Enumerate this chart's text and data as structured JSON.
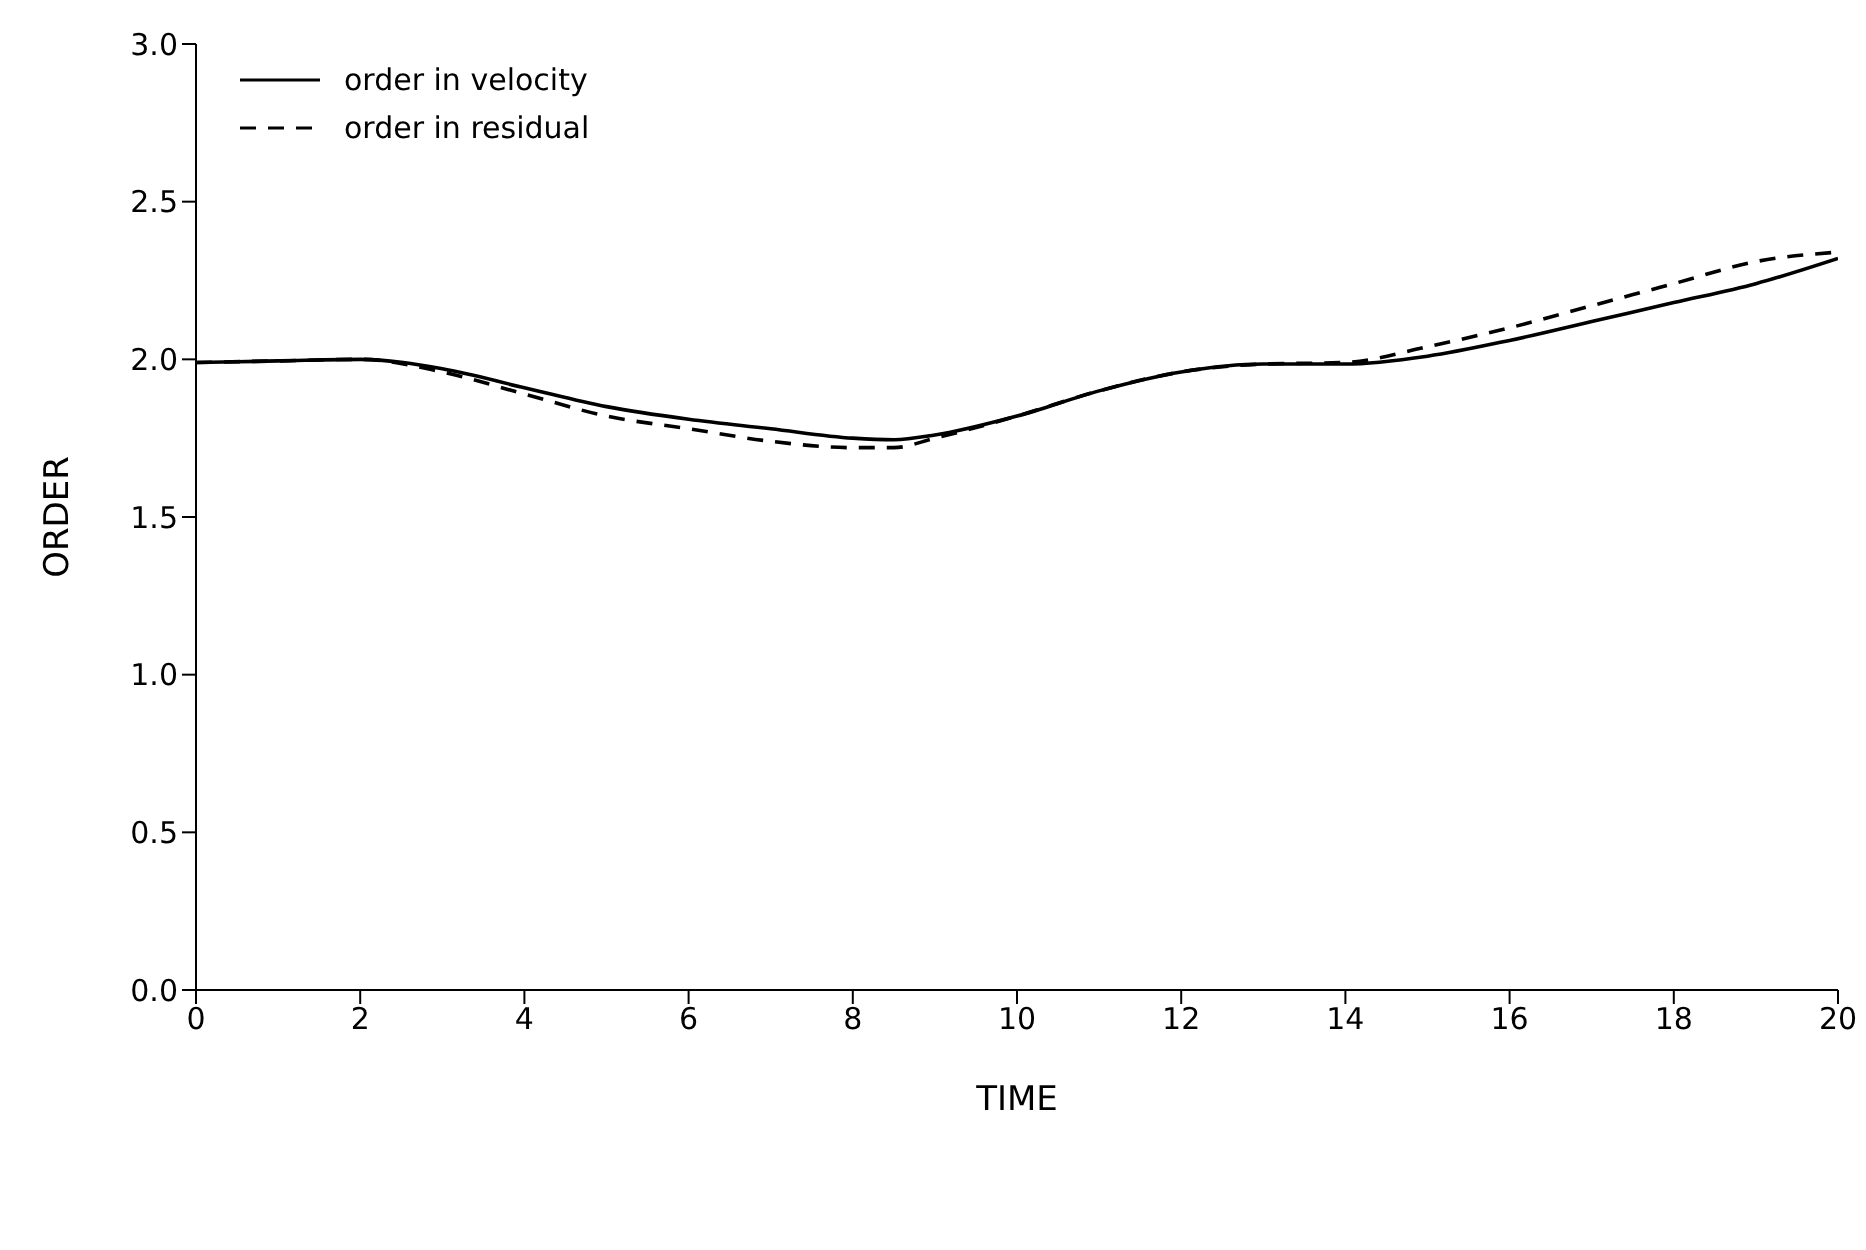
{
  "chart_data": {
    "type": "line",
    "xlabel": "TIME",
    "ylabel": "ORDER",
    "x": [
      0,
      1,
      2,
      3,
      4,
      5,
      6,
      7,
      8,
      8.5,
      9,
      10,
      11,
      12,
      13,
      14,
      15,
      16,
      17,
      18,
      19,
      20
    ],
    "series": [
      {
        "name": "order in velocity",
        "color": "#000000",
        "line_style": "solid",
        "values": [
          1.99,
          1.995,
          2.0,
          1.97,
          1.91,
          1.85,
          1.81,
          1.78,
          1.75,
          1.745,
          1.76,
          1.82,
          1.9,
          1.96,
          1.985,
          1.985,
          2.01,
          2.06,
          2.12,
          2.18,
          2.24,
          2.32
        ]
      },
      {
        "name": "order in residual",
        "color": "#000000",
        "line_style": "dashed",
        "values": [
          1.99,
          1.995,
          2.0,
          1.96,
          1.89,
          1.82,
          1.78,
          1.74,
          1.72,
          1.72,
          1.75,
          1.82,
          1.9,
          1.96,
          1.985,
          1.99,
          2.04,
          2.1,
          2.17,
          2.24,
          2.31,
          2.34
        ]
      }
    ],
    "xlim": [
      0,
      20
    ],
    "xticks": [
      0,
      2,
      4,
      6,
      8,
      10,
      12,
      14,
      16,
      18,
      20
    ],
    "ylim": [
      0,
      3
    ],
    "yticks": [
      {
        "value": 0,
        "label": "0.0"
      },
      {
        "value": 0.5,
        "label": "0.5"
      },
      {
        "value": 1,
        "label": "1.0"
      },
      {
        "value": 1.5,
        "label": "1.5"
      },
      {
        "value": 2,
        "label": "2.0"
      },
      {
        "value": 2.5,
        "label": "2.5"
      },
      {
        "value": 3,
        "label": "3.0"
      }
    ],
    "grid": false,
    "legend": "top left",
    "marker": "none"
  }
}
